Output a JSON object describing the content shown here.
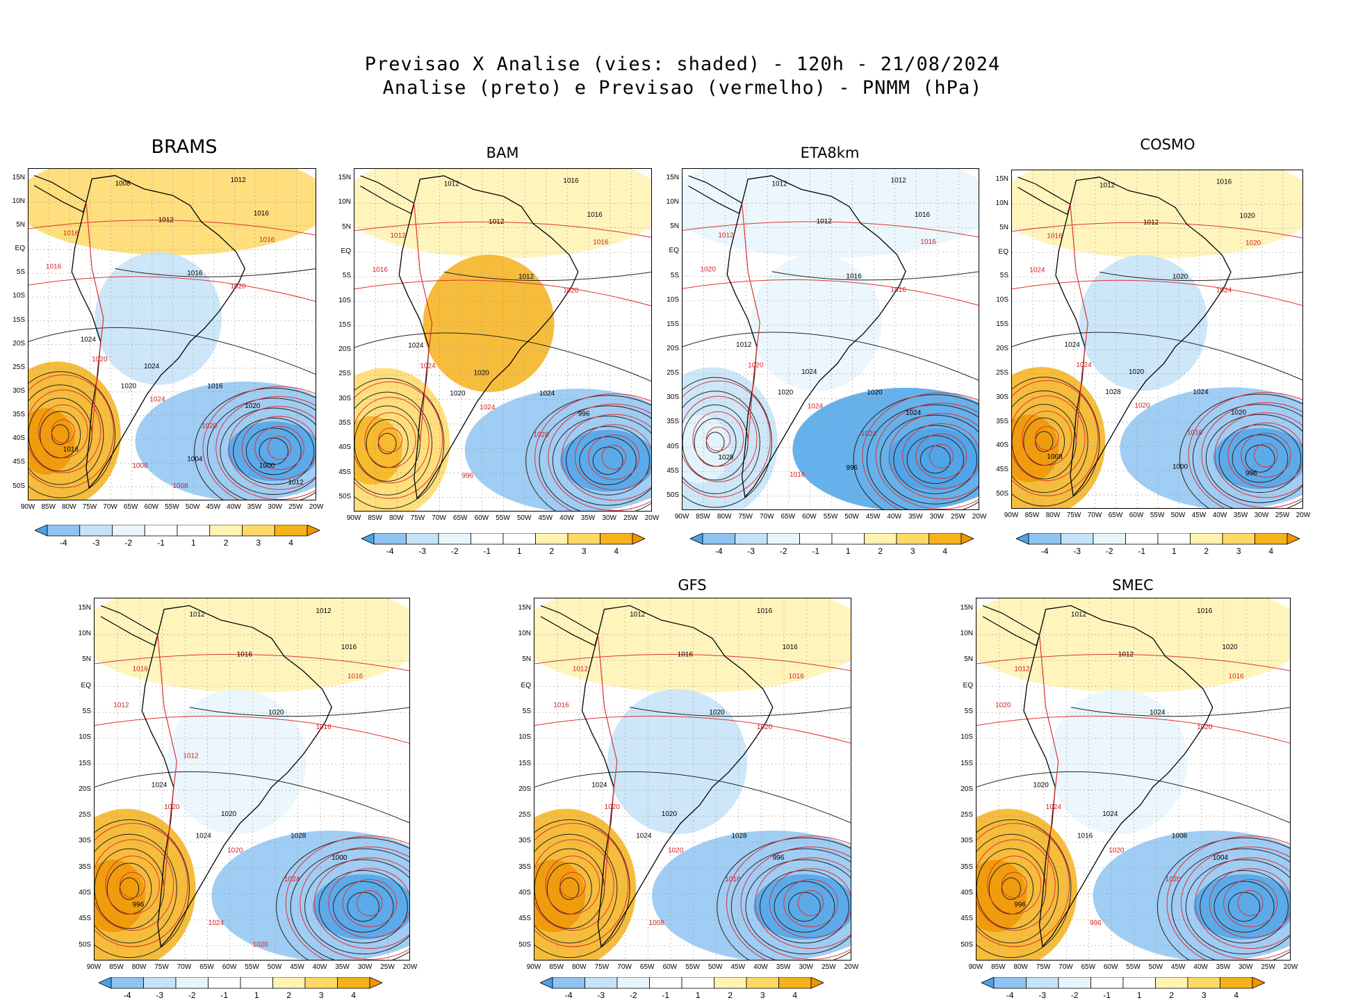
{
  "title": {
    "line1": "Previsao X Analise (vies: shaded) - 120h - 21/08/2024",
    "line2": "Analise (preto) e Previsao (vermelho) - PNMM (hPa)"
  },
  "axes": {
    "lat_labels": [
      "15N",
      "10N",
      "5N",
      "EQ",
      "5S",
      "10S",
      "15S",
      "20S",
      "25S",
      "30S",
      "35S",
      "40S",
      "45S",
      "50S"
    ],
    "lon_labels": [
      "90W",
      "85W",
      "80W",
      "75W",
      "70W",
      "65W",
      "60W",
      "55W",
      "50W",
      "45W",
      "40W",
      "35W",
      "30W",
      "25W",
      "20W"
    ]
  },
  "colorbar": {
    "labels": [
      "-4",
      "-3",
      "-2",
      "-1",
      "1",
      "2",
      "3",
      "4"
    ],
    "colors": [
      "#4aa3e8",
      "#8fc4f2",
      "#c4e3f8",
      "#e8f6fc",
      "#ffffff",
      "#fff3b0",
      "#ffd966",
      "#f5b21a",
      "#f09400"
    ]
  },
  "chart_data": [
    {
      "type": "heatmap",
      "model": "BRAMS",
      "title": "BRAMS",
      "bias_summary": {
        "tropics": 2,
        "central_south_america": -2,
        "south_atlantic": -3,
        "southeast_pacific": 3
      },
      "contour_labels_black": [
        "1008",
        "1012",
        "1012",
        "1016",
        "1016",
        "1024",
        "1024",
        "1020",
        "1016",
        "1020",
        "1016",
        "1004",
        "1000",
        "1012"
      ],
      "contour_labels_red": [
        "1016",
        "1016",
        "1016",
        "1020",
        "1020",
        "1024",
        "1020",
        "1008",
        "1008"
      ],
      "xlim": [
        "90W",
        "20W"
      ],
      "ylim": [
        "52S",
        "17N"
      ]
    },
    {
      "type": "heatmap",
      "model": "BAM",
      "title": "BAM",
      "bias_summary": {
        "tropics": 1,
        "central_south_america": 3,
        "south_atlantic": -3,
        "southeast_pacific": 2
      },
      "contour_labels_black": [
        "1012",
        "1016",
        "1012",
        "1016",
        "1012",
        "1024",
        "1020",
        "1020",
        "1024",
        "996"
      ],
      "contour_labels_red": [
        "1012",
        "1016",
        "1016",
        "1020",
        "1024",
        "1024",
        "1028",
        "996"
      ],
      "xlim": [
        "90W",
        "20W"
      ],
      "ylim": [
        "52S",
        "17N"
      ]
    },
    {
      "type": "heatmap",
      "model": "ETA8km",
      "title": "ETA8km",
      "bias_summary": {
        "tropics": -1,
        "central_south_america": -1,
        "south_atlantic": -4,
        "southeast_pacific": -2
      },
      "contour_labels_black": [
        "1012",
        "1012",
        "1012",
        "1016",
        "1016",
        "1012",
        "1024",
        "1020",
        "1020",
        "1024",
        "1028",
        "996"
      ],
      "contour_labels_red": [
        "1012",
        "1016",
        "1020",
        "1016",
        "1020",
        "1024",
        "1024",
        "1016"
      ],
      "xlim": [
        "90W",
        "20W"
      ],
      "ylim": [
        "52S",
        "17N"
      ]
    },
    {
      "type": "heatmap",
      "model": "COSMO",
      "title": "COSMO",
      "bias_summary": {
        "tropics": 1,
        "central_south_america": -2,
        "south_atlantic": -3,
        "southeast_pacific": 3
      },
      "contour_labels_black": [
        "1012",
        "1016",
        "1012",
        "1020",
        "1020",
        "1024",
        "1020",
        "1028",
        "1024",
        "1020",
        "1008",
        "1000",
        "996"
      ],
      "contour_labels_red": [
        "1016",
        "1020",
        "1024",
        "1024",
        "1024",
        "1020",
        "1016"
      ],
      "xlim": [
        "90W",
        "20W"
      ],
      "ylim": [
        "52S",
        "17N"
      ]
    },
    {
      "type": "heatmap",
      "model": "",
      "title": "",
      "bias_summary": {
        "tropics": 1,
        "central_south_america": -1,
        "south_atlantic": -3,
        "southeast_pacific": 3
      },
      "contour_labels_black": [
        "1012",
        "1012",
        "1016",
        "1016",
        "1020",
        "1024",
        "1020",
        "1024",
        "1028",
        "1000",
        "996"
      ],
      "contour_labels_red": [
        "1016",
        "1016",
        "1012",
        "1016",
        "1020",
        "1020",
        "1024",
        "1024",
        "1020",
        "1012"
      ],
      "xlim": [
        "90W",
        "20W"
      ],
      "ylim": [
        "52S",
        "17N"
      ]
    },
    {
      "type": "heatmap",
      "model": "GFS",
      "title": "GFS",
      "bias_summary": {
        "tropics": 1,
        "central_south_america": -2,
        "south_atlantic": -3,
        "southeast_pacific": 3
      },
      "contour_labels_black": [
        "1012",
        "1016",
        "1016",
        "1016",
        "1020",
        "1024",
        "1020",
        "1024",
        "1028",
        "996"
      ],
      "contour_labels_red": [
        "1012",
        "1016",
        "1016",
        "1020",
        "1020",
        "1020",
        "1016",
        "1008"
      ],
      "xlim": [
        "90W",
        "20W"
      ],
      "ylim": [
        "52S",
        "17N"
      ]
    },
    {
      "type": "heatmap",
      "model": "SMEC",
      "title": "SMEC",
      "bias_summary": {
        "tropics": 1,
        "central_south_america": -1,
        "south_atlantic": -3,
        "southeast_pacific": 3
      },
      "contour_labels_black": [
        "1012",
        "1016",
        "1012",
        "1020",
        "1024",
        "1020",
        "1024",
        "1016",
        "1008",
        "1004",
        "996"
      ],
      "contour_labels_red": [
        "1012",
        "1016",
        "1020",
        "1020",
        "1024",
        "1020",
        "1020",
        "996"
      ],
      "xlim": [
        "90W",
        "20W"
      ],
      "ylim": [
        "52S",
        "17N"
      ]
    }
  ]
}
